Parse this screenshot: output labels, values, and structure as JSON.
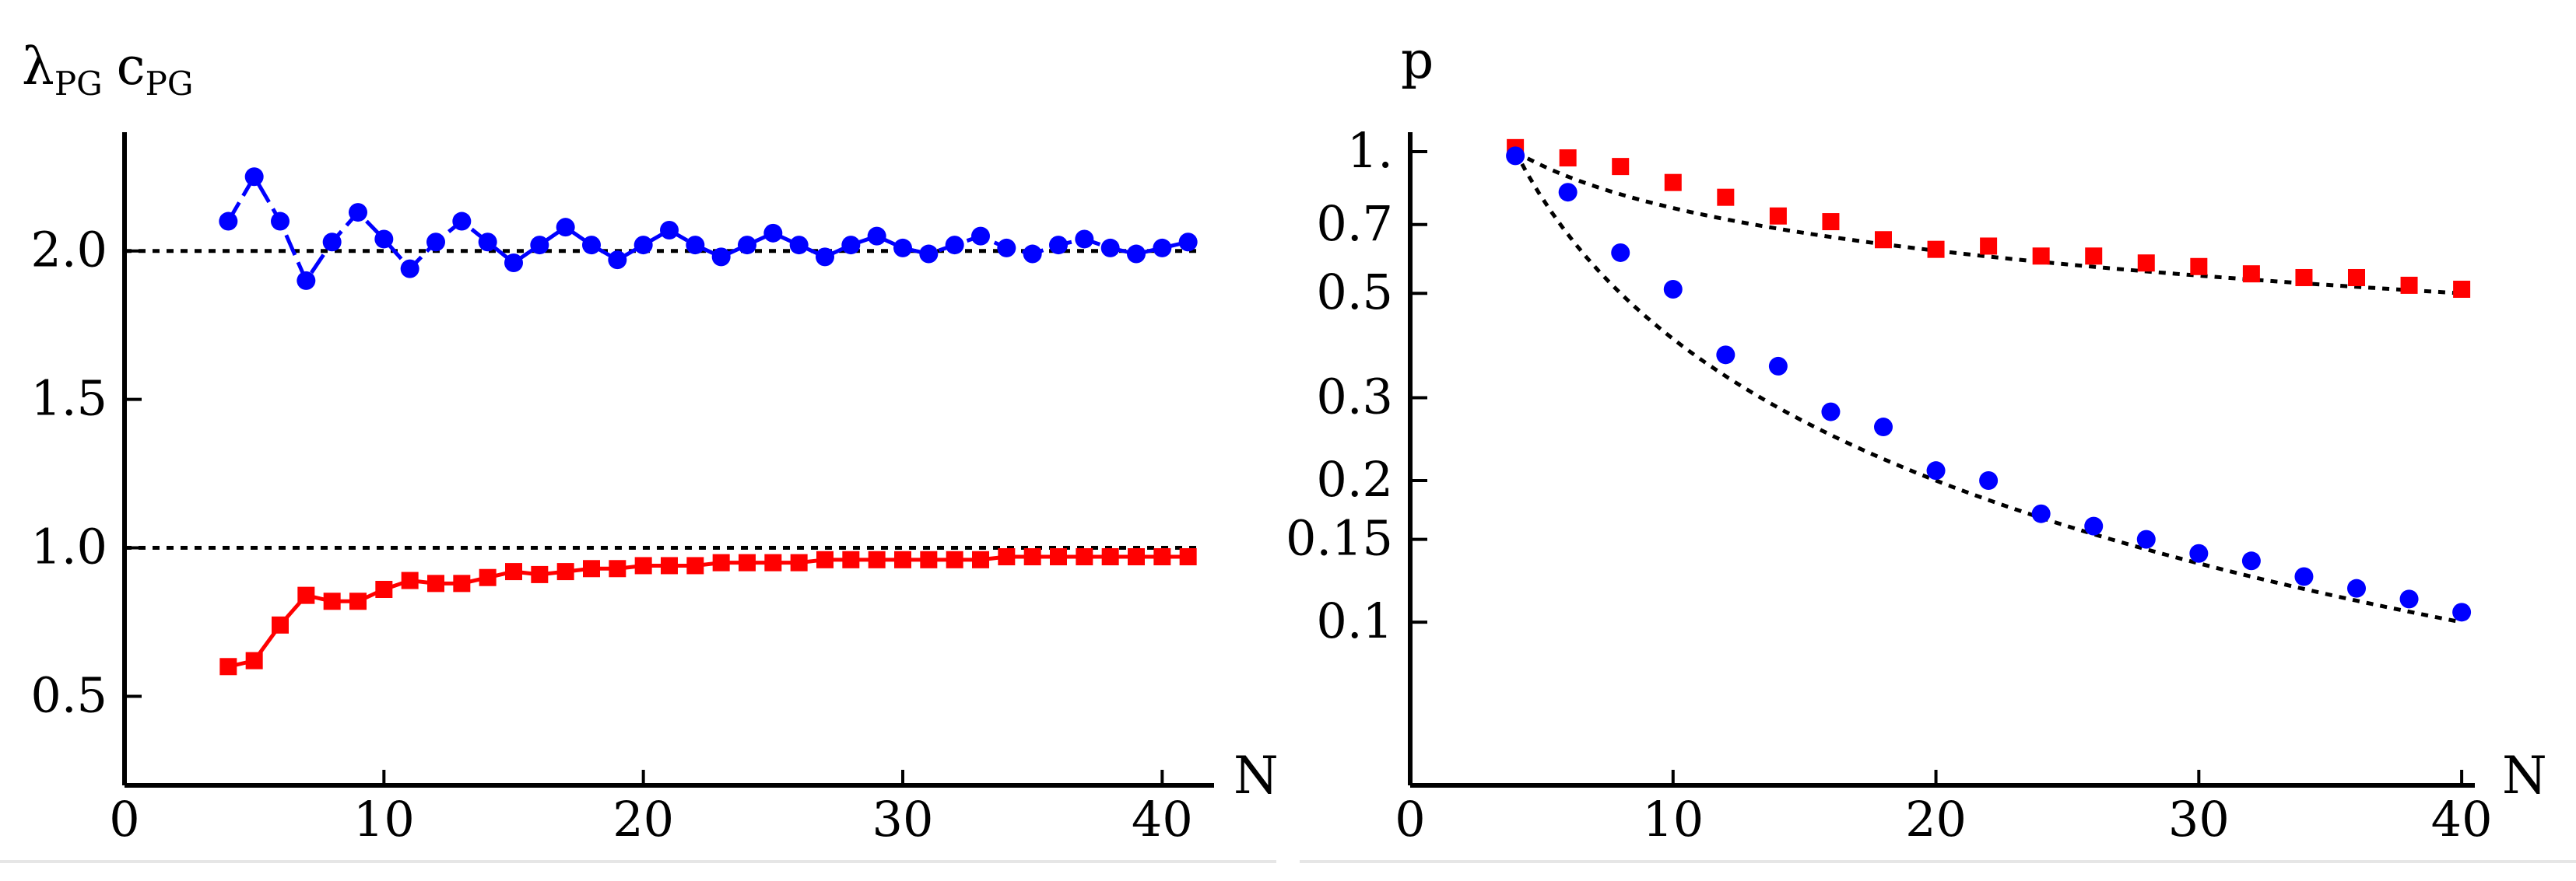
{
  "chart_data": [
    {
      "type": "line",
      "ylabel_parts": [
        {
          "sym": "λ",
          "sub": "PG"
        },
        {
          "sym": "c",
          "sub": "PG"
        }
      ],
      "xlabel": "N",
      "xlim": [
        0,
        42
      ],
      "ylim": [
        0.2,
        2.4
      ],
      "xticks": [
        0,
        10,
        20,
        30,
        40
      ],
      "yticks": [
        "0.5",
        "1.0",
        "1.5",
        "2.0"
      ],
      "reference_lines": [
        2.0,
        1.0
      ],
      "grid": false,
      "series": [
        {
          "color": "#0000ff",
          "marker": "circle",
          "line": "dashed",
          "x": [
            4,
            5,
            6,
            7,
            8,
            9,
            10,
            11,
            12,
            13,
            14,
            15,
            16,
            17,
            18,
            19,
            20,
            21,
            22,
            23,
            24,
            25,
            26,
            27,
            28,
            29,
            30,
            31,
            32,
            33,
            34,
            35,
            36,
            37,
            38,
            39,
            40,
            41
          ],
          "values": [
            2.1,
            2.25,
            2.1,
            1.9,
            2.03,
            2.13,
            2.04,
            1.94,
            2.03,
            2.1,
            2.03,
            1.96,
            2.02,
            2.08,
            2.02,
            1.97,
            2.02,
            2.07,
            2.02,
            1.98,
            2.02,
            2.06,
            2.02,
            1.98,
            2.02,
            2.05,
            2.01,
            1.99,
            2.02,
            2.05,
            2.01,
            1.99,
            2.02,
            2.04,
            2.01,
            1.99,
            2.01,
            2.03
          ]
        },
        {
          "color": "#ff0000",
          "marker": "square",
          "line": "solid",
          "x": [
            4,
            5,
            6,
            7,
            8,
            9,
            10,
            11,
            12,
            13,
            14,
            15,
            16,
            17,
            18,
            19,
            20,
            21,
            22,
            23,
            24,
            25,
            26,
            27,
            28,
            29,
            30,
            31,
            32,
            33,
            34,
            35,
            36,
            37,
            38,
            39,
            40,
            41
          ],
          "values": [
            0.6,
            0.62,
            0.74,
            0.84,
            0.82,
            0.82,
            0.86,
            0.89,
            0.88,
            0.88,
            0.9,
            0.92,
            0.91,
            0.92,
            0.93,
            0.93,
            0.94,
            0.94,
            0.94,
            0.95,
            0.95,
            0.95,
            0.95,
            0.96,
            0.96,
            0.96,
            0.96,
            0.96,
            0.96,
            0.96,
            0.97,
            0.97,
            0.97,
            0.97,
            0.97,
            0.97,
            0.97,
            0.97
          ]
        }
      ]
    },
    {
      "type": "scatter",
      "ylabel": "p",
      "xlabel": "N",
      "xlim": [
        0,
        40.5
      ],
      "ylim": [
        0.045,
        1.1
      ],
      "yscale": "log",
      "xticks": [
        0,
        10,
        20,
        30,
        40
      ],
      "yticks": [
        "1.",
        "0.7",
        "0.5",
        "0.3",
        "0.2",
        "0.15",
        "0.1"
      ],
      "grid": false,
      "series": [
        {
          "color": "#ff0000",
          "marker": "square",
          "x": [
            4,
            6,
            8,
            10,
            12,
            14,
            16,
            18,
            20,
            22,
            24,
            26,
            28,
            30,
            32,
            34,
            36,
            38,
            40
          ],
          "values": [
            1.02,
            0.97,
            0.93,
            0.86,
            0.8,
            0.73,
            0.71,
            0.65,
            0.62,
            0.63,
            0.6,
            0.6,
            0.58,
            0.57,
            0.55,
            0.54,
            0.54,
            0.52,
            0.51
          ]
        },
        {
          "color": "#0000ff",
          "marker": "circle",
          "x": [
            4,
            6,
            8,
            10,
            12,
            14,
            16,
            18,
            20,
            22,
            24,
            26,
            28,
            30,
            32,
            34,
            36,
            38,
            40
          ],
          "values": [
            0.98,
            0.82,
            0.61,
            0.51,
            0.37,
            0.35,
            0.28,
            0.26,
            0.21,
            0.2,
            0.17,
            0.16,
            0.15,
            0.14,
            0.135,
            0.125,
            0.118,
            0.112,
            0.105
          ]
        }
      ],
      "fit_curves": [
        {
          "from": 4,
          "to": 40,
          "start": 1.0,
          "end": 0.5
        },
        {
          "from": 4,
          "to": 40,
          "start": 1.0,
          "end": 0.1
        }
      ]
    }
  ]
}
